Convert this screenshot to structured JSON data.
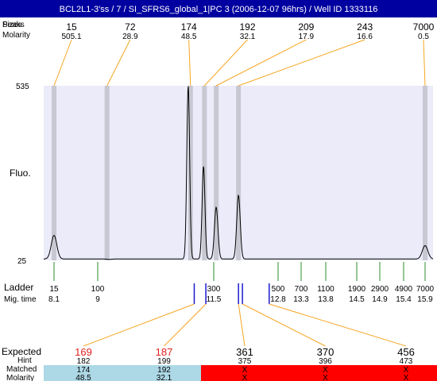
{
  "title": "BCL2L1-3'ss / 7 / SI_SFRS6_global_1|PC 3 (2006-12-07 96hrs) / Well ID 1333116",
  "row_labels": {
    "peaks": "Peaks",
    "sizes": "Sizes",
    "molarity": "Molarity",
    "fluo": "Fluo.",
    "ladder": "Ladder",
    "mig_time": "Mig. time",
    "expected": "Expected",
    "hint": "Hint",
    "matched": "Matched",
    "molarity2": "Molarity"
  },
  "colors": {
    "title_bg": "#0000a0",
    "plot_bg": "#ebebfa",
    "band": "#c8c8d2",
    "trace": "#000000",
    "leader": "#f5a623",
    "ladder_tick": "#2e8b2e",
    "hint_tick": "#1a1ad0",
    "matched_ok": "#add8e6",
    "matched_bad": "#ff0000",
    "expected_bad": "#e02020"
  },
  "chart_data": {
    "type": "line",
    "title": "",
    "ylabel": "Fluo.",
    "y_axis": {
      "min": 25,
      "max": 535,
      "ticks": [
        "535",
        "25"
      ]
    },
    "peaks": [
      {
        "size": "15",
        "molarity": "505.1",
        "mig_time": 8.1
      },
      {
        "size": "72",
        "molarity": "28.9",
        "mig_time": 9.2
      },
      {
        "size": "174",
        "molarity": "48.5",
        "mig_time": 11.0
      },
      {
        "size": "192",
        "molarity": "32.1",
        "mig_time": 11.3
      },
      {
        "size": "209",
        "molarity": "17.9",
        "mig_time": 11.55
      },
      {
        "size": "243",
        "molarity": "16.6",
        "mig_time": 12.0
      },
      {
        "size": "7000",
        "molarity": "0.5",
        "mig_time": 15.9
      }
    ],
    "ladder": [
      {
        "size": "15",
        "time": "8.1"
      },
      {
        "size": "100",
        "time": "9"
      },
      {
        "size": "300",
        "time": "11.5"
      },
      {
        "size": "500",
        "time": "12.8"
      },
      {
        "size": "700",
        "time": "13.3"
      },
      {
        "size": "1100",
        "time": "13.8"
      },
      {
        "size": "1900",
        "time": "14.5"
      },
      {
        "size": "2900",
        "time": "14.9"
      },
      {
        "size": "4900",
        "time": "15.4"
      },
      {
        "size": "7000",
        "time": "15.9"
      }
    ],
    "trace_peaks": [
      {
        "time": 8.1,
        "height": 98
      },
      {
        "time": 9.25,
        "height": 28
      },
      {
        "time": 10.95,
        "height": 535
      },
      {
        "time": 11.28,
        "height": 300
      },
      {
        "time": 11.55,
        "height": 180
      },
      {
        "time": 12.0,
        "height": 215
      },
      {
        "time": 15.9,
        "height": 68
      }
    ],
    "expected": [
      {
        "expected": "169",
        "hint": "182",
        "matched": "174",
        "molarity": "48.5",
        "hint_time": 11.08,
        "ok": true
      },
      {
        "expected": "187",
        "hint": "199",
        "matched": "192",
        "molarity": "32.1",
        "hint_time": 11.33,
        "ok": true
      },
      {
        "expected": "361",
        "hint": "375",
        "matched": "X",
        "molarity": "X",
        "hint_time": 12.0,
        "ok": false
      },
      {
        "expected": "370",
        "hint": "396",
        "matched": "X",
        "molarity": "X",
        "hint_time": 12.08,
        "ok": false
      },
      {
        "expected": "456",
        "hint": "473",
        "matched": "X",
        "molarity": "X",
        "hint_time": 12.62,
        "ok": false
      }
    ]
  }
}
